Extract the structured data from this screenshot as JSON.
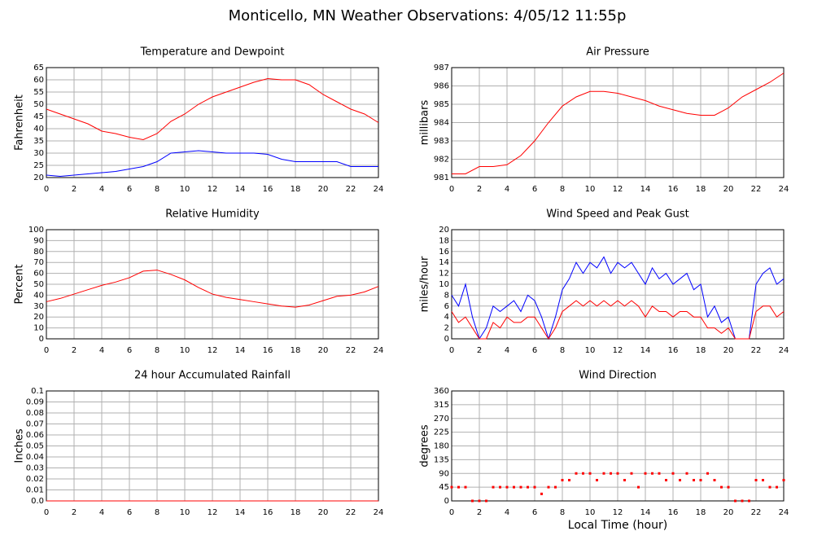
{
  "title": "Monticello, MN Weather Observations: 4/05/12 11:55p",
  "chart_data": [
    {
      "type": "line",
      "title": "Temperature and Dewpoint",
      "ylabel": "Fahrenheit",
      "xlim": [
        0,
        24
      ],
      "xticks": [
        0,
        2,
        4,
        6,
        8,
        10,
        12,
        14,
        16,
        18,
        20,
        22,
        24
      ],
      "ylim": [
        20,
        65
      ],
      "yticks": [
        20,
        25,
        30,
        35,
        40,
        45,
        50,
        55,
        60,
        65
      ],
      "grid": true,
      "x": [
        0,
        1,
        2,
        3,
        4,
        5,
        6,
        7,
        8,
        9,
        10,
        11,
        12,
        13,
        14,
        15,
        16,
        17,
        18,
        19,
        20,
        21,
        22,
        23,
        24
      ],
      "series": [
        {
          "color": "#ff0000",
          "values": [
            48,
            46,
            44,
            42,
            39,
            38,
            36.5,
            35.5,
            38,
            43,
            46,
            50,
            53,
            55,
            57,
            59,
            60.5,
            60,
            60,
            58,
            54,
            51,
            48,
            46,
            42.5
          ]
        },
        {
          "color": "#0000ff",
          "values": [
            21,
            20.5,
            21,
            21.5,
            22,
            22.5,
            23.5,
            24.5,
            26.5,
            30,
            30.5,
            31,
            30.5,
            30,
            30,
            30,
            29.5,
            27.5,
            26.5,
            26.5,
            26.5,
            26.5,
            24.5,
            24.5,
            24.5
          ]
        }
      ]
    },
    {
      "type": "line",
      "title": "Air Pressure",
      "ylabel": "millibars",
      "xlim": [
        0,
        24
      ],
      "xticks": [
        0,
        2,
        4,
        6,
        8,
        10,
        12,
        14,
        16,
        18,
        20,
        22,
        24
      ],
      "ylim": [
        981,
        987
      ],
      "yticks": [
        981,
        982,
        983,
        984,
        985,
        986,
        987
      ],
      "grid": true,
      "x": [
        0,
        1,
        2,
        3,
        4,
        5,
        6,
        7,
        8,
        9,
        10,
        11,
        12,
        13,
        14,
        15,
        16,
        17,
        18,
        19,
        20,
        21,
        22,
        23,
        24
      ],
      "series": [
        {
          "color": "#ff0000",
          "values": [
            981.2,
            981.2,
            981.6,
            981.6,
            981.7,
            982.2,
            983.0,
            984.0,
            984.9,
            985.4,
            985.7,
            985.7,
            985.6,
            985.4,
            985.2,
            984.9,
            984.7,
            984.5,
            984.4,
            984.4,
            984.8,
            985.4,
            985.8,
            986.2,
            986.7
          ]
        }
      ]
    },
    {
      "type": "line",
      "title": "Relative Humidity",
      "ylabel": "Percent",
      "xlim": [
        0,
        24
      ],
      "xticks": [
        0,
        2,
        4,
        6,
        8,
        10,
        12,
        14,
        16,
        18,
        20,
        22,
        24
      ],
      "ylim": [
        0,
        100
      ],
      "yticks": [
        0,
        10,
        20,
        30,
        40,
        50,
        60,
        70,
        80,
        90,
        100
      ],
      "grid": true,
      "x": [
        0,
        1,
        2,
        3,
        4,
        5,
        6,
        7,
        8,
        9,
        10,
        11,
        12,
        13,
        14,
        15,
        16,
        17,
        18,
        19,
        20,
        21,
        22,
        23,
        24
      ],
      "series": [
        {
          "color": "#ff0000",
          "values": [
            34,
            37,
            41,
            45,
            49,
            52,
            56,
            62,
            63,
            59,
            54,
            47,
            41,
            38,
            36,
            34,
            32,
            30,
            29,
            31,
            35,
            39,
            40,
            43,
            48
          ]
        }
      ]
    },
    {
      "type": "line",
      "title": "Wind Speed and Peak Gust",
      "ylabel": "miles/hour",
      "xlim": [
        0,
        24
      ],
      "xticks": [
        0,
        2,
        4,
        6,
        8,
        10,
        12,
        14,
        16,
        18,
        20,
        22,
        24
      ],
      "ylim": [
        0,
        20
      ],
      "yticks": [
        0,
        2,
        4,
        6,
        8,
        10,
        12,
        14,
        16,
        18,
        20
      ],
      "grid": true,
      "x": [
        0,
        0.5,
        1,
        1.5,
        2,
        2.5,
        3,
        3.5,
        4,
        4.5,
        5,
        5.5,
        6,
        6.5,
        7,
        7.5,
        8,
        8.5,
        9,
        9.5,
        10,
        10.5,
        11,
        11.5,
        12,
        12.5,
        13,
        13.5,
        14,
        14.5,
        15,
        15.5,
        16,
        16.5,
        17,
        17.5,
        18,
        18.5,
        19,
        19.5,
        20,
        20.5,
        21,
        21.5,
        22,
        22.5,
        23,
        23.5,
        24
      ],
      "series": [
        {
          "color": "#0000ff",
          "values": [
            8,
            6,
            10,
            4,
            0,
            2,
            6,
            5,
            6,
            7,
            5,
            8,
            7,
            4,
            0,
            4,
            9,
            11,
            14,
            12,
            14,
            13,
            15,
            12,
            14,
            13,
            14,
            12,
            10,
            13,
            11,
            12,
            10,
            11,
            12,
            9,
            10,
            4,
            6,
            3,
            4,
            0,
            0,
            0,
            10,
            12,
            13,
            10,
            11
          ]
        },
        {
          "color": "#ff0000",
          "values": [
            5,
            3,
            4,
            2,
            0,
            0,
            3,
            2,
            4,
            3,
            3,
            4,
            4,
            2,
            0,
            2,
            5,
            6,
            7,
            6,
            7,
            6,
            7,
            6,
            7,
            6,
            7,
            6,
            4,
            6,
            5,
            5,
            4,
            5,
            5,
            4,
            4,
            2,
            2,
            1,
            2,
            0,
            0,
            0,
            5,
            6,
            6,
            4,
            5
          ]
        }
      ]
    },
    {
      "type": "line",
      "title": "24 hour Accumulated Rainfall",
      "ylabel": "Inches",
      "xlim": [
        0,
        24
      ],
      "xticks": [
        0,
        2,
        4,
        6,
        8,
        10,
        12,
        14,
        16,
        18,
        20,
        22,
        24
      ],
      "ylim": [
        0,
        0.1
      ],
      "yticks": [
        {
          "value": 0,
          "label": "0.0"
        },
        0.01,
        0.02,
        0.03,
        0.04,
        0.05,
        0.06,
        0.07,
        0.08,
        0.09,
        0.1
      ],
      "grid": true,
      "x": [
        0,
        24
      ],
      "series": [
        {
          "color": "#ff0000",
          "values": [
            0,
            0
          ]
        }
      ]
    },
    {
      "type": "scatter",
      "title": "Wind Direction",
      "ylabel": "degrees",
      "xlabel": "Local Time (hour)",
      "xlim": [
        0,
        24
      ],
      "xticks": [
        0,
        2,
        4,
        6,
        8,
        10,
        12,
        14,
        16,
        18,
        20,
        22,
        24
      ],
      "ylim": [
        0,
        360
      ],
      "yticks": [
        0,
        45,
        90,
        135,
        180,
        225,
        270,
        315,
        360
      ],
      "grid": true,
      "x": [
        0,
        0.5,
        1,
        1.5,
        2,
        2.5,
        3,
        3.5,
        4,
        4.5,
        5,
        5.5,
        6,
        6.5,
        7,
        7.5,
        8,
        8.5,
        9,
        9.5,
        10,
        10.5,
        11,
        11.5,
        12,
        12.5,
        13,
        13.5,
        14,
        14.5,
        15,
        15.5,
        16,
        16.5,
        17,
        17.5,
        18,
        18.5,
        19,
        19.5,
        20,
        20.5,
        21,
        21.5,
        22,
        22.5,
        23,
        23.5,
        24
      ],
      "series": [
        {
          "color": "#ff0000",
          "values": [
            45,
            45,
            45,
            0,
            0,
            0,
            45,
            45,
            45,
            45,
            45,
            45,
            45,
            23,
            45,
            45,
            68,
            68,
            90,
            90,
            90,
            68,
            90,
            90,
            90,
            68,
            90,
            45,
            90,
            90,
            90,
            68,
            90,
            68,
            90,
            68,
            68,
            90,
            68,
            45,
            45,
            0,
            0,
            0,
            68,
            68,
            45,
            45,
            68
          ]
        }
      ]
    }
  ]
}
